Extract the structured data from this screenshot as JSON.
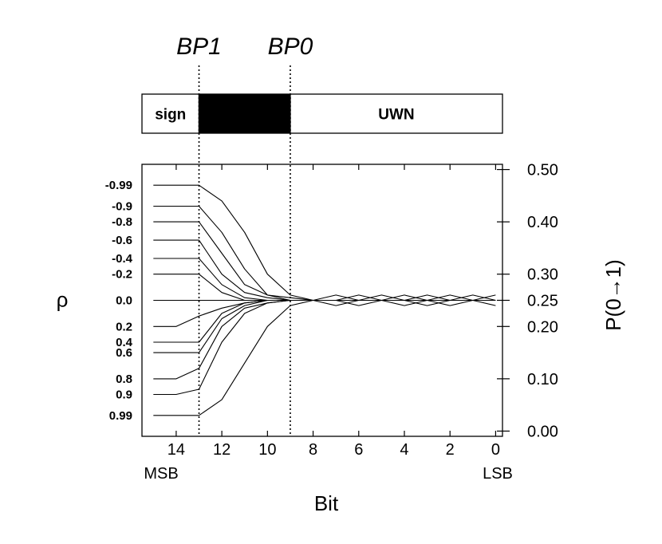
{
  "chart_data": {
    "type": "line",
    "xlabel": "Bit",
    "ylabel_left": "ρ",
    "ylabel_right": "P(0→1)",
    "x_ticks": [
      14,
      12,
      10,
      8,
      6,
      4,
      2,
      0
    ],
    "x_tick_labels": [
      "14",
      "12",
      "10",
      "8",
      "6",
      "4",
      "2",
      "0"
    ],
    "x_end_labels": {
      "msb": "MSB",
      "lsb": "LSB"
    },
    "xlim": [
      15.5,
      -0.3
    ],
    "ylim": [
      -0.01,
      0.51
    ],
    "y_right_ticks": [
      0.5,
      0.4,
      0.3,
      0.25,
      0.2,
      0.1,
      0.0
    ],
    "y_right_tick_labels": [
      "0.50",
      "0.40",
      "0.30",
      "0.25",
      "0.20",
      "0.10",
      "0.00"
    ],
    "breakpoints": [
      {
        "name": "BP1",
        "bit": 13
      },
      {
        "name": "BP0",
        "bit": 9
      }
    ],
    "word_regions": [
      {
        "label": "sign",
        "from": 15.5,
        "to": 13,
        "fill": "#ffffff"
      },
      {
        "label": "",
        "from": 13,
        "to": 9,
        "fill": "#000000"
      },
      {
        "label": "UWN",
        "from": 9,
        "to": -0.3,
        "fill": "#ffffff"
      }
    ],
    "x": [
      15,
      14,
      13,
      12,
      11,
      10,
      9,
      8,
      7,
      6,
      5,
      4,
      3,
      2,
      1,
      0
    ],
    "series": [
      {
        "rho": "-0.99",
        "values": [
          0.47,
          0.47,
          0.47,
          0.44,
          0.38,
          0.3,
          0.26,
          0.25,
          0.25,
          0.25,
          0.25,
          0.25,
          0.25,
          0.25,
          0.25,
          0.25
        ]
      },
      {
        "rho": "-0.9",
        "values": [
          0.43,
          0.43,
          0.43,
          0.38,
          0.31,
          0.26,
          0.255,
          0.25,
          0.24,
          0.25,
          0.25,
          0.26,
          0.25,
          0.25,
          0.25,
          0.26
        ]
      },
      {
        "rho": "-0.8",
        "values": [
          0.4,
          0.4,
          0.4,
          0.34,
          0.28,
          0.26,
          0.25,
          0.25,
          0.26,
          0.25,
          0.25,
          0.25,
          0.25,
          0.26,
          0.25,
          0.25
        ]
      },
      {
        "rho": "-0.6",
        "values": [
          0.365,
          0.365,
          0.365,
          0.3,
          0.265,
          0.255,
          0.25,
          0.25,
          0.25,
          0.25,
          0.25,
          0.25,
          0.25,
          0.25,
          0.25,
          0.25
        ]
      },
      {
        "rho": "-0.4",
        "values": [
          0.33,
          0.33,
          0.33,
          0.28,
          0.255,
          0.25,
          0.25,
          0.25,
          0.25,
          0.24,
          0.25,
          0.25,
          0.26,
          0.25,
          0.25,
          0.25
        ]
      },
      {
        "rho": "-0.2",
        "values": [
          0.3,
          0.3,
          0.3,
          0.265,
          0.25,
          0.25,
          0.25,
          0.25,
          0.25,
          0.25,
          0.26,
          0.25,
          0.25,
          0.25,
          0.25,
          0.25
        ]
      },
      {
        "rho": "0.0",
        "values": [
          0.25,
          0.25,
          0.25,
          0.25,
          0.25,
          0.25,
          0.25,
          0.25,
          0.25,
          0.25,
          0.25,
          0.25,
          0.25,
          0.25,
          0.25,
          0.25
        ]
      },
      {
        "rho": "0.2",
        "values": [
          0.2,
          0.2,
          0.22,
          0.235,
          0.245,
          0.25,
          0.25,
          0.25,
          0.25,
          0.25,
          0.25,
          0.25,
          0.25,
          0.24,
          0.25,
          0.25
        ]
      },
      {
        "rho": "0.4",
        "values": [
          0.17,
          0.17,
          0.17,
          0.225,
          0.245,
          0.25,
          0.25,
          0.25,
          0.25,
          0.26,
          0.25,
          0.25,
          0.25,
          0.25,
          0.25,
          0.25
        ]
      },
      {
        "rho": "0.6",
        "values": [
          0.15,
          0.15,
          0.15,
          0.215,
          0.24,
          0.25,
          0.25,
          0.25,
          0.25,
          0.25,
          0.25,
          0.24,
          0.25,
          0.25,
          0.25,
          0.25
        ]
      },
      {
        "rho": "0.8",
        "values": [
          0.1,
          0.1,
          0.12,
          0.2,
          0.235,
          0.245,
          0.25,
          0.25,
          0.25,
          0.25,
          0.25,
          0.25,
          0.24,
          0.25,
          0.26,
          0.25
        ]
      },
      {
        "rho": "0.9",
        "values": [
          0.07,
          0.07,
          0.08,
          0.17,
          0.225,
          0.245,
          0.25,
          0.25,
          0.25,
          0.25,
          0.25,
          0.25,
          0.25,
          0.25,
          0.25,
          0.24
        ]
      },
      {
        "rho": "0.99",
        "values": [
          0.03,
          0.03,
          0.03,
          0.06,
          0.13,
          0.2,
          0.24,
          0.25,
          0.25,
          0.25,
          0.25,
          0.25,
          0.25,
          0.25,
          0.25,
          0.25
        ]
      }
    ],
    "grid": false,
    "legend": "none"
  }
}
